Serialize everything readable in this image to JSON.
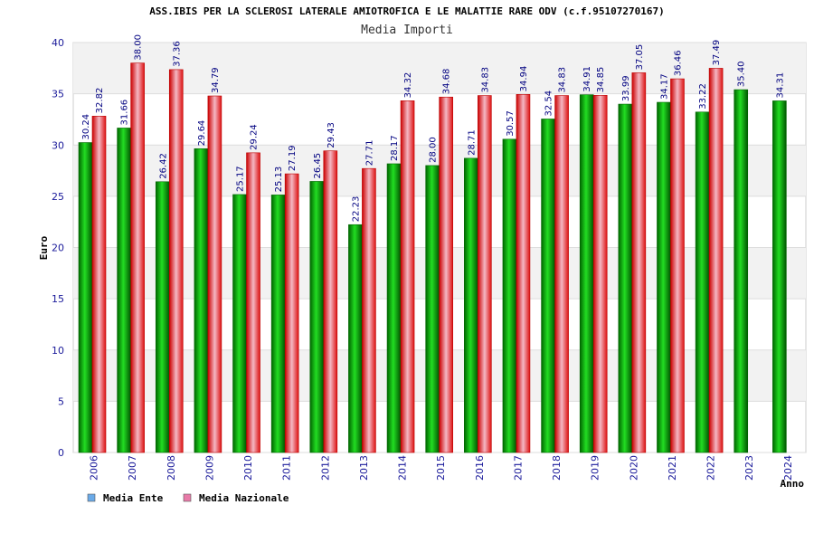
{
  "chart_data": {
    "type": "bar",
    "title": "ASS.IBIS PER LA SCLEROSI LATERALE AMIOTROFICA E LE MALATTIE RARE ODV (c.f.95107270167)",
    "subtitle": "Media Importi",
    "xlabel": "Anno",
    "ylabel": "Euro",
    "ylim": [
      0,
      40
    ],
    "yticks": [
      0,
      5,
      10,
      15,
      20,
      25,
      30,
      35,
      40
    ],
    "grid": true,
    "legend_position": "bottom-left",
    "categories": [
      "2006",
      "2007",
      "2008",
      "2009",
      "2010",
      "2011",
      "2012",
      "2013",
      "2014",
      "2015",
      "2016",
      "2017",
      "2018",
      "2019",
      "2020",
      "2021",
      "2022",
      "2023",
      "2024"
    ],
    "series": [
      {
        "name": "Media Ente",
        "color": "#00aa00",
        "legend_color": "#6aaae8",
        "values": [
          30.24,
          31.66,
          26.42,
          29.64,
          25.17,
          25.13,
          26.45,
          22.23,
          28.17,
          28.0,
          28.71,
          30.57,
          32.54,
          34.91,
          33.99,
          34.17,
          33.22,
          35.4,
          34.31
        ],
        "labels": [
          "30.24",
          "31.66",
          "26.42",
          "29.64",
          "25.17",
          "25.13",
          "26.45",
          "22.23",
          "28.17",
          "28.00",
          "28.71",
          "30.57",
          "32.54",
          "34.91",
          "33.99",
          "34.17",
          "33.22",
          "35.40",
          "34.31"
        ]
      },
      {
        "name": "Media Nazionale",
        "color": "#ee2222",
        "legend_color": "#e87aa8",
        "values": [
          32.82,
          38.0,
          37.36,
          34.79,
          29.24,
          27.19,
          29.43,
          27.71,
          34.32,
          34.68,
          34.83,
          34.94,
          34.83,
          34.85,
          37.05,
          36.46,
          37.49,
          null,
          null
        ],
        "labels": [
          "32.82",
          "38.00",
          "37.36",
          "34.79",
          "29.24",
          "27.19",
          "29.43",
          "27.71",
          "34.32",
          "34.68",
          "34.83",
          "34.94",
          "34.83",
          "34.85",
          "37.05",
          "36.46",
          "37.49",
          "",
          ""
        ]
      }
    ]
  }
}
